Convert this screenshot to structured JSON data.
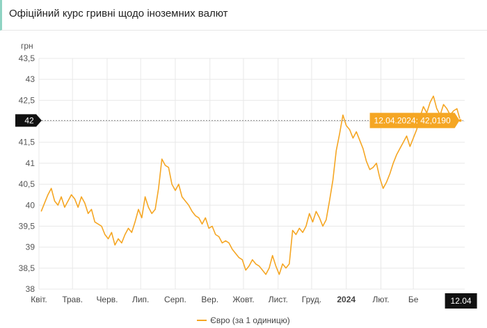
{
  "header": {
    "title": "Офіційний курс гривні щодо іноземних валют"
  },
  "chart_data": {
    "type": "line",
    "ylabel": "грн",
    "ylim": [
      38,
      43.5
    ],
    "yticks": [
      "38",
      "38,5",
      "39",
      "39,5",
      "40",
      "40,5",
      "41",
      "41,5",
      "42",
      "42,5",
      "43",
      "43,5"
    ],
    "ytick_values": [
      38,
      38.5,
      39,
      39.5,
      40,
      40.5,
      41,
      41.5,
      42,
      42.5,
      43,
      43.5
    ],
    "xlim": [
      "2023-04-01",
      "2024-04-16"
    ],
    "xticks": [
      {
        "date": "2023-04-01",
        "label": "Квіт."
      },
      {
        "date": "2023-05-01",
        "label": "Трав."
      },
      {
        "date": "2023-06-01",
        "label": "Черв."
      },
      {
        "date": "2023-07-01",
        "label": "Лип."
      },
      {
        "date": "2023-08-01",
        "label": "Серп."
      },
      {
        "date": "2023-09-01",
        "label": "Вер."
      },
      {
        "date": "2023-10-01",
        "label": "Жовт."
      },
      {
        "date": "2023-11-01",
        "label": "Лист."
      },
      {
        "date": "2023-12-01",
        "label": "Груд."
      },
      {
        "date": "2024-01-01",
        "label": "2024"
      },
      {
        "date": "2024-02-01",
        "label": "Лют."
      },
      {
        "date": "2024-03-01",
        "label": "Бе"
      }
    ],
    "grid": true,
    "legend_position": "bottom",
    "series": [
      {
        "name": "Євро (за 1 одиницю)",
        "color": "#f5a623",
        "points": [
          [
            "2023-04-03",
            39.85
          ],
          [
            "2023-04-06",
            40.05
          ],
          [
            "2023-04-09",
            40.25
          ],
          [
            "2023-04-12",
            40.4
          ],
          [
            "2023-04-15",
            40.1
          ],
          [
            "2023-04-18",
            40.0
          ],
          [
            "2023-04-21",
            40.2
          ],
          [
            "2023-04-24",
            39.95
          ],
          [
            "2023-04-27",
            40.1
          ],
          [
            "2023-04-30",
            40.25
          ],
          [
            "2023-05-03",
            40.15
          ],
          [
            "2023-05-06",
            39.95
          ],
          [
            "2023-05-09",
            40.2
          ],
          [
            "2023-05-12",
            40.05
          ],
          [
            "2023-05-15",
            39.8
          ],
          [
            "2023-05-18",
            39.9
          ],
          [
            "2023-05-21",
            39.6
          ],
          [
            "2023-05-24",
            39.55
          ],
          [
            "2023-05-27",
            39.5
          ],
          [
            "2023-05-30",
            39.3
          ],
          [
            "2023-06-02",
            39.2
          ],
          [
            "2023-06-05",
            39.35
          ],
          [
            "2023-06-08",
            39.05
          ],
          [
            "2023-06-11",
            39.2
          ],
          [
            "2023-06-14",
            39.1
          ],
          [
            "2023-06-17",
            39.3
          ],
          [
            "2023-06-20",
            39.45
          ],
          [
            "2023-06-23",
            39.35
          ],
          [
            "2023-06-26",
            39.6
          ],
          [
            "2023-06-29",
            39.9
          ],
          [
            "2023-07-02",
            39.7
          ],
          [
            "2023-07-05",
            40.2
          ],
          [
            "2023-07-08",
            39.95
          ],
          [
            "2023-07-11",
            39.8
          ],
          [
            "2023-07-14",
            39.9
          ],
          [
            "2023-07-17",
            40.4
          ],
          [
            "2023-07-20",
            41.1
          ],
          [
            "2023-07-23",
            40.95
          ],
          [
            "2023-07-26",
            40.9
          ],
          [
            "2023-07-29",
            40.5
          ],
          [
            "2023-08-01",
            40.35
          ],
          [
            "2023-08-04",
            40.5
          ],
          [
            "2023-08-07",
            40.2
          ],
          [
            "2023-08-10",
            40.1
          ],
          [
            "2023-08-13",
            40.0
          ],
          [
            "2023-08-16",
            39.85
          ],
          [
            "2023-08-19",
            39.75
          ],
          [
            "2023-08-22",
            39.7
          ],
          [
            "2023-08-25",
            39.55
          ],
          [
            "2023-08-28",
            39.7
          ],
          [
            "2023-08-31",
            39.45
          ],
          [
            "2023-09-03",
            39.5
          ],
          [
            "2023-09-06",
            39.3
          ],
          [
            "2023-09-09",
            39.25
          ],
          [
            "2023-09-12",
            39.1
          ],
          [
            "2023-09-15",
            39.15
          ],
          [
            "2023-09-18",
            39.1
          ],
          [
            "2023-09-21",
            38.95
          ],
          [
            "2023-09-24",
            38.85
          ],
          [
            "2023-09-27",
            38.75
          ],
          [
            "2023-09-30",
            38.7
          ],
          [
            "2023-10-03",
            38.45
          ],
          [
            "2023-10-06",
            38.55
          ],
          [
            "2023-10-09",
            38.7
          ],
          [
            "2023-10-12",
            38.6
          ],
          [
            "2023-10-15",
            38.55
          ],
          [
            "2023-10-18",
            38.45
          ],
          [
            "2023-10-21",
            38.35
          ],
          [
            "2023-10-24",
            38.5
          ],
          [
            "2023-10-27",
            38.8
          ],
          [
            "2023-10-30",
            38.55
          ],
          [
            "2023-11-02",
            38.35
          ],
          [
            "2023-11-05",
            38.6
          ],
          [
            "2023-11-08",
            38.5
          ],
          [
            "2023-11-11",
            38.6
          ],
          [
            "2023-11-14",
            39.4
          ],
          [
            "2023-11-17",
            39.3
          ],
          [
            "2023-11-20",
            39.45
          ],
          [
            "2023-11-23",
            39.35
          ],
          [
            "2023-11-26",
            39.5
          ],
          [
            "2023-11-29",
            39.8
          ],
          [
            "2023-12-02",
            39.6
          ],
          [
            "2023-12-05",
            39.85
          ],
          [
            "2023-12-08",
            39.7
          ],
          [
            "2023-12-11",
            39.5
          ],
          [
            "2023-12-14",
            39.65
          ],
          [
            "2023-12-17",
            40.1
          ],
          [
            "2023-12-20",
            40.6
          ],
          [
            "2023-12-23",
            41.3
          ],
          [
            "2023-12-26",
            41.7
          ],
          [
            "2023-12-29",
            42.15
          ],
          [
            "2024-01-01",
            41.9
          ],
          [
            "2024-01-04",
            41.8
          ],
          [
            "2024-01-07",
            41.6
          ],
          [
            "2024-01-10",
            41.75
          ],
          [
            "2024-01-13",
            41.55
          ],
          [
            "2024-01-16",
            41.35
          ],
          [
            "2024-01-19",
            41.05
          ],
          [
            "2024-01-22",
            40.85
          ],
          [
            "2024-01-25",
            40.9
          ],
          [
            "2024-01-28",
            41.0
          ],
          [
            "2024-01-31",
            40.65
          ],
          [
            "2024-02-03",
            40.4
          ],
          [
            "2024-02-06",
            40.55
          ],
          [
            "2024-02-09",
            40.75
          ],
          [
            "2024-02-12",
            41.0
          ],
          [
            "2024-02-15",
            41.2
          ],
          [
            "2024-02-18",
            41.35
          ],
          [
            "2024-02-21",
            41.5
          ],
          [
            "2024-02-24",
            41.65
          ],
          [
            "2024-02-27",
            41.4
          ],
          [
            "2024-03-01",
            41.6
          ],
          [
            "2024-03-04",
            41.8
          ],
          [
            "2024-03-07",
            42.1
          ],
          [
            "2024-03-10",
            42.35
          ],
          [
            "2024-03-13",
            42.2
          ],
          [
            "2024-03-16",
            42.45
          ],
          [
            "2024-03-19",
            42.6
          ],
          [
            "2024-03-22",
            42.3
          ],
          [
            "2024-03-25",
            42.15
          ],
          [
            "2024-03-28",
            42.4
          ],
          [
            "2024-03-31",
            42.3
          ],
          [
            "2024-04-03",
            42.15
          ],
          [
            "2024-04-06",
            42.25
          ],
          [
            "2024-04-09",
            42.3
          ],
          [
            "2024-04-12",
            42.019
          ]
        ]
      }
    ],
    "crosshair_value_label": "42",
    "tooltip": "12.04.2024: 42,0190",
    "current_x_label": "12.04",
    "current_date": "2024-04-12",
    "current_value": 42.019
  }
}
